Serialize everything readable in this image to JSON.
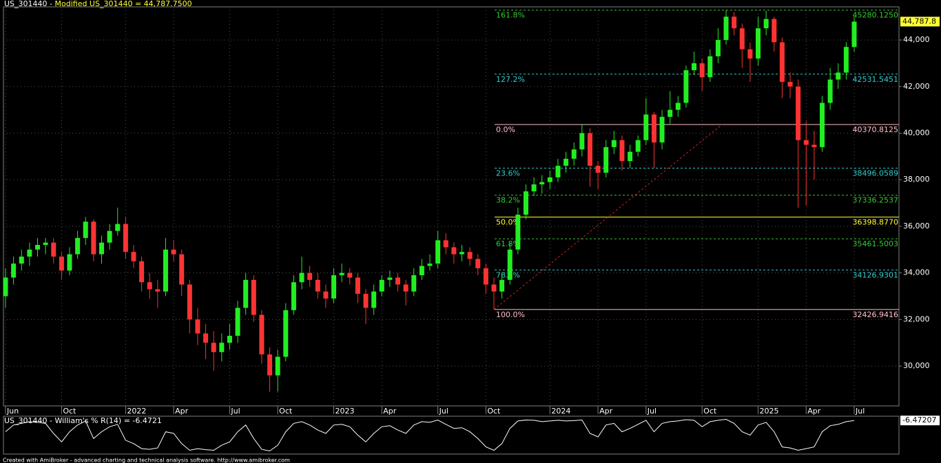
{
  "chart_data": {
    "type": "candlestick",
    "title": "US_301440 - ",
    "subtitle": "Modified US_301440 = 44,787.7500",
    "last_price_label": "44,787.8",
    "footer": "Created with AmiBroker - advanced charting and technical analysis software. http://www.amibroker.com",
    "up_color": "#22ee22",
    "down_color": "#ff3333",
    "grid": true,
    "ylim": [
      28290,
      45420
    ],
    "yticks": [
      {
        "value": 30000,
        "label": "30,000"
      },
      {
        "value": 32000,
        "label": "32,000"
      },
      {
        "value": 34000,
        "label": "34,000"
      },
      {
        "value": 36000,
        "label": "36,000"
      },
      {
        "value": 38000,
        "label": "38,000"
      },
      {
        "value": 40000,
        "label": "40,000"
      },
      {
        "value": 42000,
        "label": "42,000"
      },
      {
        "value": 44000,
        "label": "44,000"
      }
    ],
    "categories": [
      "Jun",
      null,
      null,
      null,
      null,
      null,
      null,
      "Oct",
      null,
      null,
      null,
      null,
      null,
      null,
      null,
      "2022",
      null,
      null,
      null,
      null,
      null,
      "Apr",
      null,
      null,
      null,
      null,
      null,
      null,
      "Jul",
      null,
      null,
      null,
      null,
      null,
      "Oct",
      null,
      null,
      null,
      null,
      null,
      null,
      "2023",
      null,
      null,
      null,
      null,
      null,
      "Apr",
      null,
      null,
      null,
      null,
      null,
      null,
      "Jul",
      null,
      null,
      null,
      null,
      null,
      "Oct",
      null,
      null,
      null,
      null,
      null,
      null,
      null,
      "2024",
      null,
      null,
      null,
      null,
      null,
      "Apr",
      null,
      null,
      null,
      null,
      null,
      "Jul",
      null,
      null,
      null,
      null,
      null,
      null,
      "Oct",
      null,
      null,
      null,
      null,
      null,
      null,
      "2025",
      null,
      null,
      null,
      null,
      null,
      "Apr",
      null,
      null,
      null,
      null,
      null,
      "Jul"
    ],
    "ohlc": [
      [
        33000,
        34200,
        32500,
        33800
      ],
      [
        33800,
        34700,
        33500,
        34400
      ],
      [
        34400,
        35000,
        34100,
        34700
      ],
      [
        34700,
        35300,
        34300,
        35000
      ],
      [
        35000,
        35500,
        34700,
        35200
      ],
      [
        35200,
        35500,
        34800,
        35300
      ],
      [
        35300,
        35500,
        34400,
        34700
      ],
      [
        34700,
        34900,
        33700,
        34100
      ],
      [
        34100,
        35100,
        33900,
        34800
      ],
      [
        34800,
        35800,
        34600,
        35500
      ],
      [
        35500,
        36400,
        35200,
        36200
      ],
      [
        36200,
        36300,
        34500,
        34800
      ],
      [
        34800,
        35600,
        34400,
        35300
      ],
      [
        35300,
        36100,
        35000,
        35800
      ],
      [
        35800,
        36800,
        35600,
        36100
      ],
      [
        36100,
        36400,
        34600,
        34900
      ],
      [
        34900,
        35200,
        34200,
        34500
      ],
      [
        34500,
        34700,
        33200,
        33600
      ],
      [
        33600,
        34000,
        32900,
        33300
      ],
      [
        33300,
        33700,
        32500,
        33200
      ],
      [
        33200,
        35500,
        33000,
        35000
      ],
      [
        35000,
        35400,
        34500,
        34800
      ],
      [
        34800,
        35000,
        33000,
        33500
      ],
      [
        33500,
        33700,
        31400,
        32000
      ],
      [
        32000,
        32500,
        30900,
        31400
      ],
      [
        31400,
        31800,
        30300,
        31000
      ],
      [
        31000,
        31500,
        29800,
        30600
      ],
      [
        30600,
        31400,
        30200,
        31000
      ],
      [
        31000,
        31800,
        30700,
        31300
      ],
      [
        31300,
        32800,
        31000,
        32500
      ],
      [
        32500,
        34000,
        32200,
        33700
      ],
      [
        33700,
        33900,
        31900,
        32200
      ],
      [
        32200,
        32400,
        30100,
        30500
      ],
      [
        30500,
        30800,
        28900,
        29600
      ],
      [
        29600,
        30700,
        28900,
        30400
      ],
      [
        30400,
        32700,
        30200,
        32400
      ],
      [
        32400,
        33900,
        32200,
        33600
      ],
      [
        33600,
        34700,
        33300,
        34000
      ],
      [
        34000,
        34300,
        33400,
        33700
      ],
      [
        33700,
        34000,
        32900,
        33200
      ],
      [
        33200,
        33500,
        32500,
        32900
      ],
      [
        32900,
        34200,
        32700,
        33900
      ],
      [
        33900,
        34400,
        33600,
        34000
      ],
      [
        34000,
        34200,
        33500,
        33800
      ],
      [
        33800,
        34000,
        32700,
        33100
      ],
      [
        33100,
        33300,
        31800,
        32500
      ],
      [
        32500,
        33500,
        32200,
        33200
      ],
      [
        33200,
        33900,
        33000,
        33700
      ],
      [
        33700,
        34100,
        33400,
        33800
      ],
      [
        33800,
        34000,
        33200,
        33500
      ],
      [
        33500,
        33700,
        32600,
        33200
      ],
      [
        33200,
        34200,
        33000,
        33900
      ],
      [
        33900,
        34600,
        33700,
        34300
      ],
      [
        34300,
        34800,
        34100,
        34400
      ],
      [
        34400,
        35800,
        34200,
        35400
      ],
      [
        35400,
        35700,
        34800,
        35100
      ],
      [
        35100,
        35300,
        34400,
        34800
      ],
      [
        34800,
        35200,
        34500,
        34900
      ],
      [
        34900,
        35100,
        34300,
        34600
      ],
      [
        34600,
        34800,
        33900,
        34200
      ],
      [
        34200,
        34400,
        33100,
        33500
      ],
      [
        33500,
        33800,
        32427,
        33200
      ],
      [
        33200,
        34000,
        32900,
        33700
      ],
      [
        33700,
        35300,
        33500,
        35000
      ],
      [
        35000,
        36800,
        34800,
        36500
      ],
      [
        36500,
        37800,
        36300,
        37500
      ],
      [
        37500,
        38100,
        37300,
        37800
      ],
      [
        37800,
        38200,
        37400,
        37900
      ],
      [
        37900,
        38400,
        37600,
        38100
      ],
      [
        38100,
        38900,
        37900,
        38600
      ],
      [
        38600,
        39200,
        38300,
        38900
      ],
      [
        38900,
        39600,
        38600,
        39300
      ],
      [
        39300,
        40370,
        39000,
        40000
      ],
      [
        40000,
        40200,
        37700,
        38600
      ],
      [
        38600,
        38800,
        37600,
        38300
      ],
      [
        38300,
        39700,
        38100,
        39400
      ],
      [
        39400,
        40100,
        39100,
        39700
      ],
      [
        39700,
        39900,
        38400,
        38800
      ],
      [
        38800,
        39500,
        38500,
        39200
      ],
      [
        39200,
        39900,
        39000,
        39700
      ],
      [
        39700,
        41500,
        39500,
        40800
      ],
      [
        40800,
        40900,
        38500,
        39600
      ],
      [
        39600,
        41000,
        39300,
        40700
      ],
      [
        40700,
        41800,
        40400,
        41000
      ],
      [
        41000,
        41600,
        40700,
        41300
      ],
      [
        41300,
        42900,
        41100,
        42700
      ],
      [
        42700,
        43500,
        42500,
        43000
      ],
      [
        43000,
        43200,
        41800,
        42400
      ],
      [
        42400,
        43600,
        42200,
        43300
      ],
      [
        43300,
        44500,
        43000,
        44000
      ],
      [
        44000,
        45280,
        43800,
        45000
      ],
      [
        45000,
        45200,
        44200,
        44500
      ],
      [
        44500,
        44700,
        42800,
        43600
      ],
      [
        43600,
        43900,
        42200,
        43200
      ],
      [
        43200,
        45000,
        42900,
        44500
      ],
      [
        44500,
        45250,
        44200,
        44900
      ],
      [
        44900,
        45000,
        43500,
        43900
      ],
      [
        43900,
        44100,
        41500,
        42200
      ],
      [
        42200,
        42600,
        41500,
        42000
      ],
      [
        42000,
        42300,
        36800,
        39700
      ],
      [
        39700,
        40500,
        36900,
        39500
      ],
      [
        39500,
        40100,
        38000,
        39400
      ],
      [
        39400,
        41600,
        39200,
        41300
      ],
      [
        41300,
        42800,
        41000,
        42300
      ],
      [
        42300,
        43000,
        41900,
        42600
      ],
      [
        42600,
        43900,
        42300,
        43700
      ],
      [
        43700,
        45000,
        43500,
        44787.75
      ]
    ],
    "fib_levels": [
      {
        "label": "161.8%",
        "value": 45280.125,
        "value_label": "45280.1250",
        "color": "#33cc33",
        "dashed": true
      },
      {
        "label": "127.2%",
        "value": 42531.5451,
        "value_label": "42531.5451",
        "color": "#33cccc",
        "dashed": true
      },
      {
        "label": "0.0%",
        "value": 40370.8125,
        "value_label": "40370.8125",
        "color": "#ffc0cb",
        "dashed": false
      },
      {
        "label": "23.6%",
        "value": 38496.0589,
        "value_label": "38496.0589",
        "color": "#33cccc",
        "dashed": true
      },
      {
        "label": "38.2%",
        "value": 37336.2537,
        "value_label": "37336.2537",
        "color": "#33cc33",
        "dashed": true
      },
      {
        "label": "50.0%",
        "value": 36398.877,
        "value_label": "36398.8770",
        "color": "#ffff33",
        "dashed": false
      },
      {
        "label": "61.8%",
        "value": 35461.5003,
        "value_label": "35461.5003",
        "color": "#33cc33",
        "dashed": true
      },
      {
        "label": "78.6%",
        "value": 34126.9301,
        "value_label": "34126.9301",
        "color": "#33cccc",
        "dashed": true
      },
      {
        "label": "100.0%",
        "value": 32426.9416,
        "value_label": "32426.9416",
        "color": "#ffc0cb",
        "dashed": false
      }
    ],
    "williams": {
      "title": "US_301440 - William's % R(14) = -6.4721",
      "value_label": "-6.47207",
      "color": "#ffffff",
      "ylim": [
        -100,
        0
      ],
      "values": [
        -40,
        -20,
        -15,
        -10,
        -12,
        -15,
        -45,
        -70,
        -40,
        -20,
        -8,
        -60,
        -40,
        -25,
        -18,
        -65,
        -75,
        -90,
        -92,
        -88,
        -40,
        -45,
        -75,
        -95,
        -90,
        -93,
        -95,
        -80,
        -70,
        -40,
        -20,
        -60,
        -92,
        -97,
        -80,
        -40,
        -15,
        -10,
        -20,
        -35,
        -45,
        -20,
        -18,
        -25,
        -50,
        -70,
        -45,
        -25,
        -22,
        -35,
        -45,
        -20,
        -10,
        -12,
        -5,
        -18,
        -30,
        -28,
        -40,
        -60,
        -85,
        -95,
        -75,
        -30,
        -8,
        -5,
        -6,
        -10,
        -8,
        -6,
        -8,
        -7,
        -5,
        -45,
        -55,
        -20,
        -15,
        -40,
        -30,
        -18,
        -6,
        -40,
        -15,
        -10,
        -8,
        -4,
        -6,
        -25,
        -10,
        -6,
        -3,
        -15,
        -40,
        -50,
        -20,
        -12,
        -40,
        -85,
        -88,
        -95,
        -90,
        -85,
        -40,
        -22,
        -18,
        -10,
        -6.4721
      ]
    }
  }
}
